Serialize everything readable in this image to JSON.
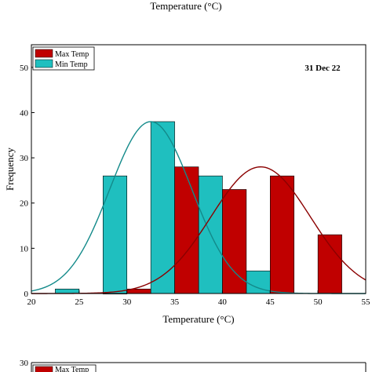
{
  "header_title": "Temperature (°C)",
  "chart_data": [
    {
      "type": "bar",
      "subtitle": "31 Dec 22",
      "xlabel": "Temperature (°C)",
      "ylabel": "Frequency",
      "xlim": [
        20,
        55
      ],
      "ylim": [
        0,
        55
      ],
      "xticks": [
        20,
        25,
        30,
        35,
        40,
        45,
        50,
        55
      ],
      "yticks": [
        0,
        10,
        20,
        30,
        40,
        50
      ],
      "legend_position": "top-left",
      "series": [
        {
          "name": "Max Temp",
          "color": "#c00000",
          "bins": [
            {
              "x0": 27.5,
              "x1": 30,
              "value": 0
            },
            {
              "x0": 30,
              "x1": 32.5,
              "value": 1
            },
            {
              "x0": 35,
              "x1": 37.5,
              "value": 28
            },
            {
              "x0": 40,
              "x1": 42.5,
              "value": 23
            },
            {
              "x0": 45,
              "x1": 47.5,
              "value": 26
            },
            {
              "x0": 50,
              "x1": 52.5,
              "value": 13
            }
          ],
          "fit": {
            "type": "normal",
            "mean": 44,
            "peak": 28,
            "sigma": 5.2
          }
        },
        {
          "name": "Min Temp",
          "color": "#1fbfbf",
          "bins": [
            {
              "x0": 22.5,
              "x1": 25,
              "value": 1
            },
            {
              "x0": 27.5,
              "x1": 30,
              "value": 26
            },
            {
              "x0": 32.5,
              "x1": 35,
              "value": 38
            },
            {
              "x0": 37.5,
              "x1": 40,
              "value": 26
            },
            {
              "x0": 42.5,
              "x1": 45,
              "value": 5
            }
          ],
          "fit": {
            "type": "normal",
            "mean": 32.5,
            "peak": 38,
            "sigma": 4.3
          }
        }
      ]
    },
    {
      "type": "bar",
      "yticks": [
        30
      ],
      "legend": [
        "Max Temp"
      ],
      "color": "#c00000"
    }
  ]
}
